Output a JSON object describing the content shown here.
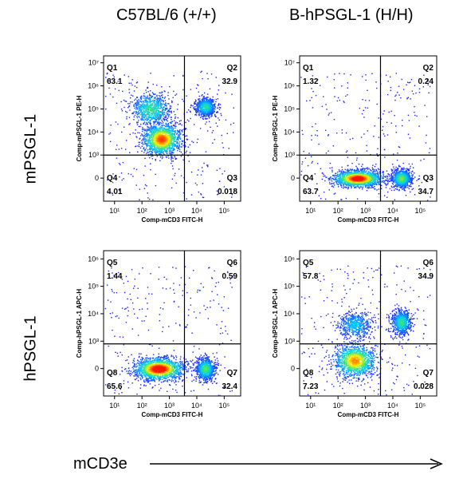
{
  "columns": [
    "C57BL/6 (+/+)",
    "B-hPSGL-1 (H/H)"
  ],
  "rows": [
    "mPSGL-1",
    "hPSGL-1"
  ],
  "x_axis_label": "mCD3e",
  "colors": {
    "axis": "#000000",
    "gate": "#000000",
    "density_low": "#1a1aff",
    "density_mid": "#00e0e0",
    "density_high": "#ffff00",
    "density_peak": "#ff0000"
  },
  "chart_data": [
    {
      "type": "scatter",
      "panel": "top-left",
      "xlabel": "Comp-mCD3 FITC-H",
      "ylabel": "Comp-mPSGL-1 PE-H",
      "x_ticks": [
        "10¹",
        "10²",
        "10³",
        "10⁴",
        "10⁵"
      ],
      "y_ticks": [
        "10⁷",
        "10⁶",
        "10⁵",
        "10⁴",
        "10³",
        "0"
      ],
      "quadrants": [
        {
          "label": "Q1",
          "value": "63.1"
        },
        {
          "label": "Q2",
          "value": "32.9"
        },
        {
          "label": "Q3",
          "value": "0.018"
        },
        {
          "label": "Q4",
          "value": "4.01"
        }
      ],
      "populations": [
        {
          "x": 2.7,
          "y": 3.7,
          "spread_x": 0.35,
          "spread_y": 0.35,
          "weight": 0.55
        },
        {
          "x": 2.3,
          "y": 5.0,
          "spread_x": 0.35,
          "spread_y": 0.35,
          "weight": 0.3
        },
        {
          "x": 4.3,
          "y": 5.1,
          "spread_x": 0.18,
          "spread_y": 0.2,
          "weight": 0.28
        }
      ]
    },
    {
      "type": "scatter",
      "panel": "top-right",
      "xlabel": "Comp-mCD3 FITC-H",
      "ylabel": "Comp-mPSGL-1 PE-H",
      "x_ticks": [
        "10¹",
        "10²",
        "10³",
        "10⁴",
        "10⁵"
      ],
      "y_ticks": [
        "10⁷",
        "10⁶",
        "10⁵",
        "10⁴",
        "10³",
        "0"
      ],
      "quadrants": [
        {
          "label": "Q1",
          "value": "1.32"
        },
        {
          "label": "Q2",
          "value": "0.24"
        },
        {
          "label": "Q3",
          "value": "34.7"
        },
        {
          "label": "Q4",
          "value": "63.7"
        }
      ],
      "populations": [
        {
          "x": 2.7,
          "y": 2.0,
          "spread_x": 0.45,
          "spread_y": 0.18,
          "weight": 0.62
        },
        {
          "x": 4.3,
          "y": 2.0,
          "spread_x": 0.18,
          "spread_y": 0.2,
          "weight": 0.35
        }
      ]
    },
    {
      "type": "scatter",
      "panel": "bottom-left",
      "xlabel": "Comp-mCD3 FITC-H",
      "ylabel": "Comp-hPSGL-1 APC-H",
      "x_ticks": [
        "10¹",
        "10²",
        "10³",
        "10⁴",
        "10⁵"
      ],
      "y_ticks": [
        "10⁶",
        "10⁵",
        "10⁴",
        "10³",
        "0"
      ],
      "quadrants": [
        {
          "label": "Q5",
          "value": "1.44"
        },
        {
          "label": "Q6",
          "value": "0.59"
        },
        {
          "label": "Q7",
          "value": "32.4"
        },
        {
          "label": "Q8",
          "value": "65.6"
        }
      ],
      "populations": [
        {
          "x": 2.6,
          "y": 2.0,
          "spread_x": 0.45,
          "spread_y": 0.2,
          "weight": 0.64
        },
        {
          "x": 4.3,
          "y": 2.0,
          "spread_x": 0.17,
          "spread_y": 0.2,
          "weight": 0.33
        }
      ]
    },
    {
      "type": "scatter",
      "panel": "bottom-right",
      "xlabel": "Comp-mCD3 FITC-H",
      "ylabel": "Comp-hPSGL-1 APC-H",
      "x_ticks": [
        "10¹",
        "10²",
        "10³",
        "10⁴",
        "10⁵"
      ],
      "y_ticks": [
        "10⁶",
        "10⁵",
        "10⁴",
        "10³",
        "0"
      ],
      "quadrants": [
        {
          "label": "Q5",
          "value": "57.8"
        },
        {
          "label": "Q6",
          "value": "34.9"
        },
        {
          "label": "Q7",
          "value": "0.028"
        },
        {
          "label": "Q8",
          "value": "7.23"
        }
      ],
      "populations": [
        {
          "x": 2.6,
          "y": 2.3,
          "spread_x": 0.38,
          "spread_y": 0.3,
          "weight": 0.5
        },
        {
          "x": 2.6,
          "y": 3.6,
          "spread_x": 0.3,
          "spread_y": 0.25,
          "weight": 0.2
        },
        {
          "x": 4.3,
          "y": 3.7,
          "spread_x": 0.17,
          "spread_y": 0.22,
          "weight": 0.3
        }
      ]
    }
  ]
}
